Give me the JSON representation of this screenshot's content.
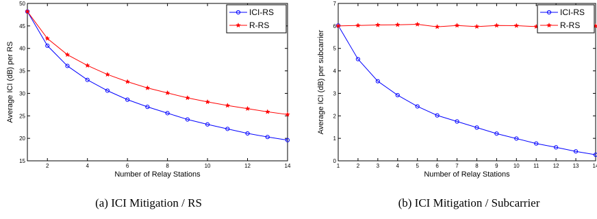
{
  "chart_data": [
    {
      "type": "line",
      "xlabel": "Number of Relay Stations",
      "ylabel": "Average ICI (dB) per RS",
      "xlim": [
        1,
        14
      ],
      "ylim": [
        15,
        50
      ],
      "xticks": [
        2,
        4,
        6,
        8,
        10,
        12,
        14
      ],
      "yticks": [
        15,
        20,
        25,
        30,
        35,
        40,
        45,
        50
      ],
      "grid": false,
      "legend_position": "top-right",
      "x": [
        1,
        2,
        3,
        4,
        5,
        6,
        7,
        8,
        9,
        10,
        11,
        12,
        13,
        14
      ],
      "series": [
        {
          "name": "ICI-RS",
          "color": "#0000ff",
          "marker": "circle",
          "values": [
            48.2,
            40.6,
            36.1,
            33.0,
            30.6,
            28.6,
            27.0,
            25.6,
            24.2,
            23.1,
            22.1,
            21.1,
            20.3,
            19.6
          ]
        },
        {
          "name": "R-RS",
          "color": "#ff0000",
          "marker": "star",
          "values": [
            48.2,
            42.2,
            38.6,
            36.2,
            34.2,
            32.6,
            31.2,
            30.1,
            29.0,
            28.1,
            27.3,
            26.6,
            25.9,
            25.3
          ]
        }
      ]
    },
    {
      "type": "line",
      "xlabel": "Number of Relay Stations",
      "ylabel": "Average ICI (dB) per subcarrier",
      "xlim": [
        1,
        14
      ],
      "ylim": [
        0,
        7
      ],
      "xticks": [
        1,
        2,
        3,
        4,
        5,
        6,
        7,
        8,
        9,
        10,
        11,
        12,
        13,
        14
      ],
      "yticks": [
        0,
        1,
        2,
        3,
        4,
        5,
        6,
        7
      ],
      "grid": false,
      "legend_position": "top-right",
      "x": [
        1,
        2,
        3,
        4,
        5,
        6,
        7,
        8,
        9,
        10,
        11,
        12,
        13,
        14
      ],
      "series": [
        {
          "name": "ICI-RS",
          "color": "#0000ff",
          "marker": "circle",
          "values": [
            6.02,
            4.52,
            3.54,
            2.92,
            2.42,
            2.02,
            1.75,
            1.48,
            1.21,
            0.99,
            0.77,
            0.6,
            0.42,
            0.27
          ]
        },
        {
          "name": "R-RS",
          "color": "#ff0000",
          "marker": "star",
          "values": [
            6.0,
            6.02,
            6.04,
            6.05,
            6.07,
            5.96,
            6.02,
            5.97,
            6.02,
            6.01,
            5.97,
            5.98,
            5.96,
            6.0
          ]
        }
      ]
    }
  ],
  "captions": [
    "(a) ICI Mitigation / RS",
    "(b) ICI Mitigation / Subcarrier"
  ]
}
